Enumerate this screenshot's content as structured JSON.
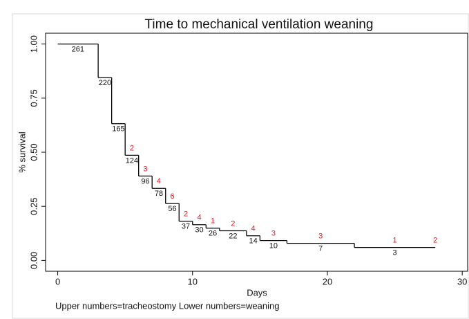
{
  "chart_data": {
    "type": "step",
    "title": "Time to mechanical ventilation weaning",
    "x_label": "Days",
    "y_label": "% survival",
    "note": "Upper numbers=tracheostomy Lower numbers=weaning",
    "x": [
      0,
      3,
      4,
      5,
      6,
      7,
      8,
      9,
      10,
      11,
      12,
      14,
      15,
      17,
      22,
      28
    ],
    "values": [
      1.0,
      0.845,
      0.632,
      0.486,
      0.39,
      0.333,
      0.263,
      0.181,
      0.165,
      0.149,
      0.137,
      0.114,
      0.092,
      0.079,
      0.06,
      0.06
    ],
    "lower_numbers": [
      261,
      220,
      165,
      124,
      96,
      78,
      56,
      37,
      30,
      26,
      22,
      14,
      10,
      7,
      3,
      null
    ],
    "upper_numbers": [
      null,
      null,
      null,
      2,
      3,
      4,
      6,
      2,
      4,
      1,
      2,
      4,
      3,
      3,
      1,
      2
    ],
    "color": "#000000",
    "upper_color": "#e8141c",
    "lower_color": "#111111",
    "xlim": [
      -0.9,
      30.4
    ],
    "ylim": [
      -0.05,
      1.05
    ],
    "xticks": [
      0,
      10,
      20,
      30
    ],
    "yticks": [
      {
        "value": 0,
        "label": "0.00"
      },
      {
        "value": 0.25,
        "label": "0.25"
      },
      {
        "value": 0.5,
        "label": "0.50"
      },
      {
        "value": 0.75,
        "label": "0.75"
      },
      {
        "value": 1,
        "label": "1.00"
      }
    ]
  }
}
